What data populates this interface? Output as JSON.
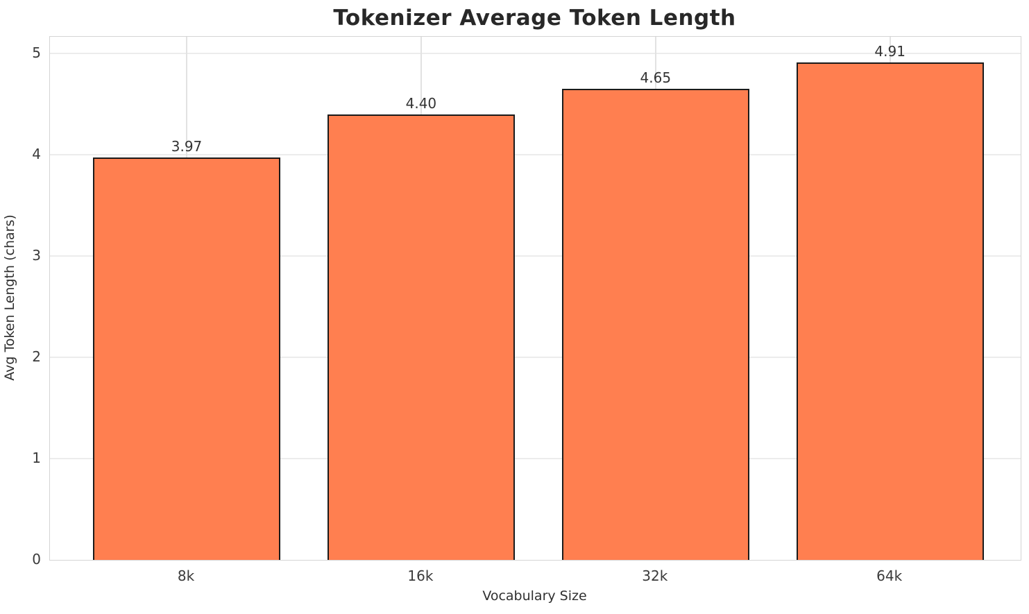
{
  "chart_data": {
    "type": "bar",
    "title": "Tokenizer Average Token Length",
    "xlabel": "Vocabulary Size",
    "ylabel": "Avg Token Length (chars)",
    "categories": [
      "8k",
      "16k",
      "32k",
      "64k"
    ],
    "values": [
      3.97,
      4.4,
      4.65,
      4.91
    ],
    "value_labels": [
      "3.97",
      "4.40",
      "4.65",
      "4.91"
    ],
    "yticks": [
      0,
      1,
      2,
      3,
      4,
      5
    ],
    "ylim": [
      0,
      5.16
    ],
    "grid": true,
    "legend": false,
    "bar_color": "#FF7F50",
    "bar_edge_color": "#1a1a1a",
    "grid_color": "#ececec",
    "spine_color": "#d4d4d4",
    "background_color": "#ffffff"
  }
}
